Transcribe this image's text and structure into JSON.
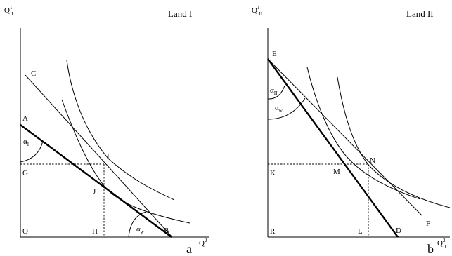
{
  "panel_left": {
    "title": "Land I",
    "y_axis": {
      "base": "Q",
      "sup": "1",
      "sub": "I"
    },
    "x_axis": {
      "base": "Q",
      "sup": "2",
      "sub": "I"
    },
    "panel_letter": "a",
    "points": {
      "A": "A",
      "C": "C",
      "G": "G",
      "O": "O",
      "H": "H",
      "B": "B",
      "I": "I",
      "J": "J"
    },
    "angle_alpha_I": {
      "base": "α",
      "sub": "I"
    },
    "angle_alpha_w": {
      "base": "α",
      "sub": "w"
    }
  },
  "panel_right": {
    "title": "Land II",
    "y_axis": {
      "base": "Q",
      "sup": "1",
      "sub": "II"
    },
    "x_axis": {
      "base": "Q",
      "sup": "2",
      "sub": "I"
    },
    "panel_letter": "b",
    "points": {
      "E": "E",
      "K": "K",
      "R": "R",
      "L": "L",
      "D": "D",
      "M": "M",
      "N": "N",
      "F": "F"
    },
    "angle_alpha_II": {
      "base": "α",
      "sub": "II"
    },
    "angle_alpha_w": {
      "base": "α",
      "sub": "w"
    }
  }
}
